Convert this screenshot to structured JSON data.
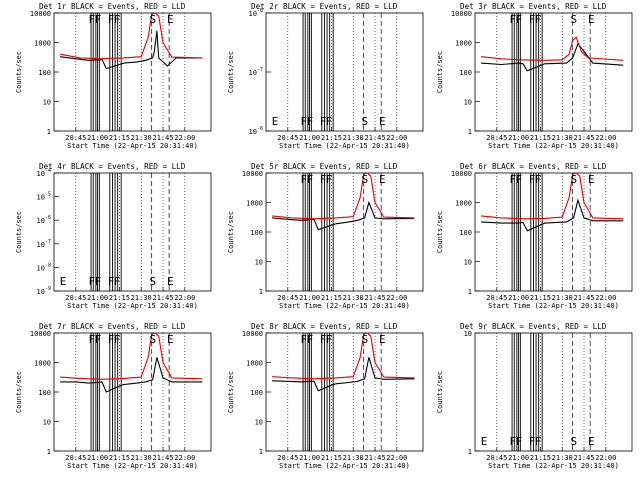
{
  "figure": {
    "title_template": "Det {det} BLACK = Events, RED = LLD",
    "xlabel": "Start Time (22-Apr-15 20:31:40)",
    "ylabel": "Counts/sec",
    "black_series": "Events",
    "red_series": "LLD",
    "colors": {
      "events": "#000000",
      "lld": "#e00000"
    }
  },
  "chart_data": [
    {
      "type": "line",
      "det": "1r",
      "title": "Det 1r BLACK = Events, RED = LLD",
      "xlabel": "Start Time (22-Apr-15 20:31:40)",
      "ylabel": "Counts/sec",
      "xlim": [
        20.5,
        22.3
      ],
      "x_ticks": [
        "20:45",
        "21:00",
        "21:15",
        "21:30",
        "21:45",
        "22:00"
      ],
      "ylim": [
        1,
        10000
      ],
      "y_ticks": [
        "1",
        "10",
        "100",
        "1000",
        "10000"
      ],
      "markers": [
        "F",
        "F",
        "F",
        "F",
        "S",
        "E"
      ],
      "series": [
        {
          "name": "Events",
          "x": [
            20.57,
            20.75,
            20.9,
            21.0,
            21.02,
            21.05,
            21.1,
            21.25,
            21.3,
            21.45,
            21.55,
            21.63,
            21.65,
            21.68,
            21.7,
            21.8,
            21.9,
            22.2
          ],
          "y": [
            330,
            280,
            250,
            260,
            250,
            270,
            130,
            180,
            200,
            220,
            250,
            300,
            500,
            2500,
            300,
            160,
            300,
            300
          ]
        },
        {
          "name": "LLD",
          "x": [
            20.57,
            20.8,
            21.05,
            21.1,
            21.3,
            21.5,
            21.58,
            21.62,
            21.66,
            21.7,
            21.75,
            21.85,
            22.2
          ],
          "y": [
            400,
            300,
            280,
            290,
            300,
            330,
            1500,
            9000,
            12000,
            8000,
            1000,
            320,
            300
          ]
        }
      ]
    },
    {
      "type": "line",
      "det": "2r",
      "title": "Det 2r BLACK = Events, RED = LLD",
      "xlabel": "Start Time (22-Apr-15 20:31:40)",
      "ylabel": "Counts/sec",
      "xlim": [
        20.5,
        22.3
      ],
      "x_ticks": [
        "20:45",
        "21:00",
        "21:15",
        "21:30",
        "21:45",
        "22:00"
      ],
      "ylim": [
        1e-06,
        1e-08
      ],
      "y_ticks": [
        "10^-6",
        "10^-7",
        "10^-8"
      ],
      "markers": [
        "E",
        "F",
        "F",
        "F",
        "F",
        "S",
        "E"
      ],
      "series": []
    },
    {
      "type": "line",
      "det": "3r",
      "title": "Det 3r BLACK = Events, RED = LLD",
      "xlabel": "Start Time (22-Apr-15 20:31:40)",
      "ylabel": "Counts/sec",
      "xlim": [
        20.5,
        22.3
      ],
      "x_ticks": [
        "20:45",
        "21:00",
        "21:15",
        "21:30",
        "21:45",
        "22:00"
      ],
      "ylim": [
        1,
        10000
      ],
      "y_ticks": [
        "1",
        "10",
        "100",
        "1000",
        "10000"
      ],
      "markers": [
        "F",
        "F",
        "F",
        "F",
        "S",
        "E"
      ],
      "series": [
        {
          "name": "Events",
          "x": [
            20.57,
            20.8,
            21.0,
            21.05,
            21.1,
            21.3,
            21.55,
            21.62,
            21.68,
            21.75,
            21.85,
            22.2
          ],
          "y": [
            200,
            180,
            200,
            190,
            110,
            190,
            200,
            300,
            900,
            500,
            200,
            170
          ]
        },
        {
          "name": "LLD",
          "x": [
            20.57,
            20.8,
            21.0,
            21.3,
            21.5,
            21.58,
            21.62,
            21.66,
            21.72,
            21.8,
            22.2
          ],
          "y": [
            330,
            280,
            260,
            250,
            260,
            400,
            1200,
            1500,
            500,
            300,
            250
          ]
        }
      ]
    },
    {
      "type": "line",
      "det": "4r",
      "title": "Det 4r BLACK = Events, RED = LLD",
      "xlabel": "Start Time (22-Apr-15 20:31:40)",
      "ylabel": "Counts/sec",
      "xlim": [
        20.5,
        22.3
      ],
      "x_ticks": [
        "20:45",
        "21:00",
        "21:15",
        "21:30",
        "21:45",
        "22:00"
      ],
      "ylim": [
        1e-09,
        0.0001
      ],
      "y_ticks": [
        "10^-9",
        "10^-8",
        "10^-7",
        "10^-6",
        "10^-5",
        "10^-4"
      ],
      "markers": [
        "E",
        "F",
        "F",
        "F",
        "F",
        "S",
        "E"
      ],
      "series": []
    },
    {
      "type": "line",
      "det": "5r",
      "title": "Det 5r BLACK = Events, RED = LLD",
      "xlabel": "Start Time (22-Apr-15 20:31:40)",
      "ylabel": "Counts/sec",
      "xlim": [
        20.5,
        22.3
      ],
      "x_ticks": [
        "20:45",
        "21:00",
        "21:15",
        "21:30",
        "21:45",
        "22:00"
      ],
      "ylim": [
        1,
        10000
      ],
      "y_ticks": [
        "1",
        "10",
        "100",
        "1000",
        "10000"
      ],
      "markers": [
        "F",
        "F",
        "F",
        "F",
        "S",
        "E"
      ],
      "series": [
        {
          "name": "Events",
          "x": [
            20.57,
            20.75,
            20.9,
            21.0,
            21.05,
            21.1,
            21.25,
            21.3,
            21.45,
            21.55,
            21.63,
            21.68,
            21.75,
            21.85,
            22.2
          ],
          "y": [
            300,
            270,
            250,
            260,
            270,
            120,
            170,
            190,
            220,
            250,
            300,
            1000,
            300,
            280,
            290
          ]
        },
        {
          "name": "LLD",
          "x": [
            20.57,
            20.8,
            21.05,
            21.3,
            21.5,
            21.58,
            21.62,
            21.66,
            21.7,
            21.75,
            21.85,
            22.2
          ],
          "y": [
            350,
            300,
            280,
            300,
            330,
            1500,
            9000,
            12000,
            8000,
            1000,
            320,
            300
          ]
        }
      ]
    },
    {
      "type": "line",
      "det": "6r",
      "title": "Det 6r BLACK = Events, RED = LLD",
      "xlabel": "Start Time (22-Apr-15 20:31:40)",
      "ylabel": "Counts/sec",
      "xlim": [
        20.5,
        22.3
      ],
      "x_ticks": [
        "20:45",
        "21:00",
        "21:15",
        "21:30",
        "21:45",
        "22:00"
      ],
      "ylim": [
        1,
        10000
      ],
      "y_ticks": [
        "1",
        "10",
        "100",
        "1000",
        "10000"
      ],
      "markers": [
        "F",
        "F",
        "F",
        "F",
        "S",
        "E"
      ],
      "series": [
        {
          "name": "Events",
          "x": [
            20.57,
            20.8,
            21.0,
            21.05,
            21.1,
            21.3,
            21.55,
            21.63,
            21.68,
            21.75,
            21.85,
            22.2
          ],
          "y": [
            220,
            200,
            200,
            210,
            110,
            200,
            220,
            300,
            1200,
            300,
            240,
            240
          ]
        },
        {
          "name": "LLD",
          "x": [
            20.57,
            20.8,
            21.05,
            21.3,
            21.5,
            21.58,
            21.62,
            21.66,
            21.7,
            21.75,
            21.85,
            22.2
          ],
          "y": [
            350,
            300,
            280,
            290,
            320,
            1500,
            9000,
            12000,
            8000,
            1000,
            300,
            280
          ]
        }
      ]
    },
    {
      "type": "line",
      "det": "7r",
      "title": "Det 7r BLACK = Events, RED = LLD",
      "xlabel": "Start Time (22-Apr-15 20:31:40)",
      "ylabel": "Counts/sec",
      "xlim": [
        20.5,
        22.3
      ],
      "x_ticks": [
        "20:45",
        "21:00",
        "21:15",
        "21:30",
        "21:45",
        "22:00"
      ],
      "ylim": [
        1,
        10000
      ],
      "y_ticks": [
        "1",
        "10",
        "100",
        "1000",
        "10000"
      ],
      "markers": [
        "F",
        "F",
        "F",
        "F",
        "S",
        "E"
      ],
      "series": [
        {
          "name": "Events",
          "x": [
            20.57,
            20.75,
            20.9,
            21.0,
            21.05,
            21.1,
            21.25,
            21.3,
            21.45,
            21.55,
            21.63,
            21.68,
            21.75,
            21.85,
            22.2
          ],
          "y": [
            220,
            220,
            200,
            210,
            220,
            100,
            160,
            180,
            200,
            220,
            260,
            1500,
            300,
            220,
            220
          ]
        },
        {
          "name": "LLD",
          "x": [
            20.57,
            20.8,
            21.05,
            21.3,
            21.5,
            21.58,
            21.62,
            21.66,
            21.7,
            21.75,
            21.85,
            22.2
          ],
          "y": [
            320,
            290,
            270,
            290,
            320,
            1500,
            9000,
            12000,
            8000,
            1000,
            300,
            280
          ]
        }
      ]
    },
    {
      "type": "line",
      "det": "8r",
      "title": "Det 8r BLACK = Events, RED = LLD",
      "xlabel": "Start Time (22-Apr-15 20:31:40)",
      "ylabel": "Counts/sec",
      "xlim": [
        20.5,
        22.3
      ],
      "x_ticks": [
        "20:45",
        "21:00",
        "21:15",
        "21:30",
        "21:45",
        "22:00"
      ],
      "ylim": [
        1,
        10000
      ],
      "y_ticks": [
        "1",
        "10",
        "100",
        "1000",
        "10000"
      ],
      "markers": [
        "F",
        "F",
        "F",
        "F",
        "S",
        "E"
      ],
      "series": [
        {
          "name": "Events",
          "x": [
            20.57,
            20.75,
            20.9,
            21.0,
            21.05,
            21.1,
            21.25,
            21.3,
            21.45,
            21.55,
            21.63,
            21.68,
            21.75,
            21.85,
            22.2
          ],
          "y": [
            240,
            230,
            220,
            230,
            230,
            110,
            170,
            190,
            210,
            230,
            280,
            1500,
            300,
            270,
            280
          ]
        },
        {
          "name": "LLD",
          "x": [
            20.57,
            20.8,
            21.05,
            21.3,
            21.5,
            21.58,
            21.62,
            21.66,
            21.7,
            21.75,
            21.85,
            22.2
          ],
          "y": [
            330,
            300,
            280,
            300,
            330,
            1500,
            9000,
            12000,
            8000,
            1000,
            320,
            300
          ]
        }
      ]
    },
    {
      "type": "line",
      "det": "9r",
      "title": "Det 9r BLACK = Events, RED = LLD",
      "xlabel": "Start Time (22-Apr-15 20:31:40)",
      "ylabel": "Counts/sec",
      "xlim": [
        20.5,
        22.3
      ],
      "x_ticks": [
        "20:45",
        "21:00",
        "21:15",
        "21:30",
        "21:45",
        "22:00"
      ],
      "ylim": [
        1,
        10
      ],
      "y_ticks": [
        "1",
        "10"
      ],
      "markers": [
        "E",
        "F",
        "F",
        "F",
        "F",
        "S",
        "E"
      ],
      "series": []
    }
  ]
}
